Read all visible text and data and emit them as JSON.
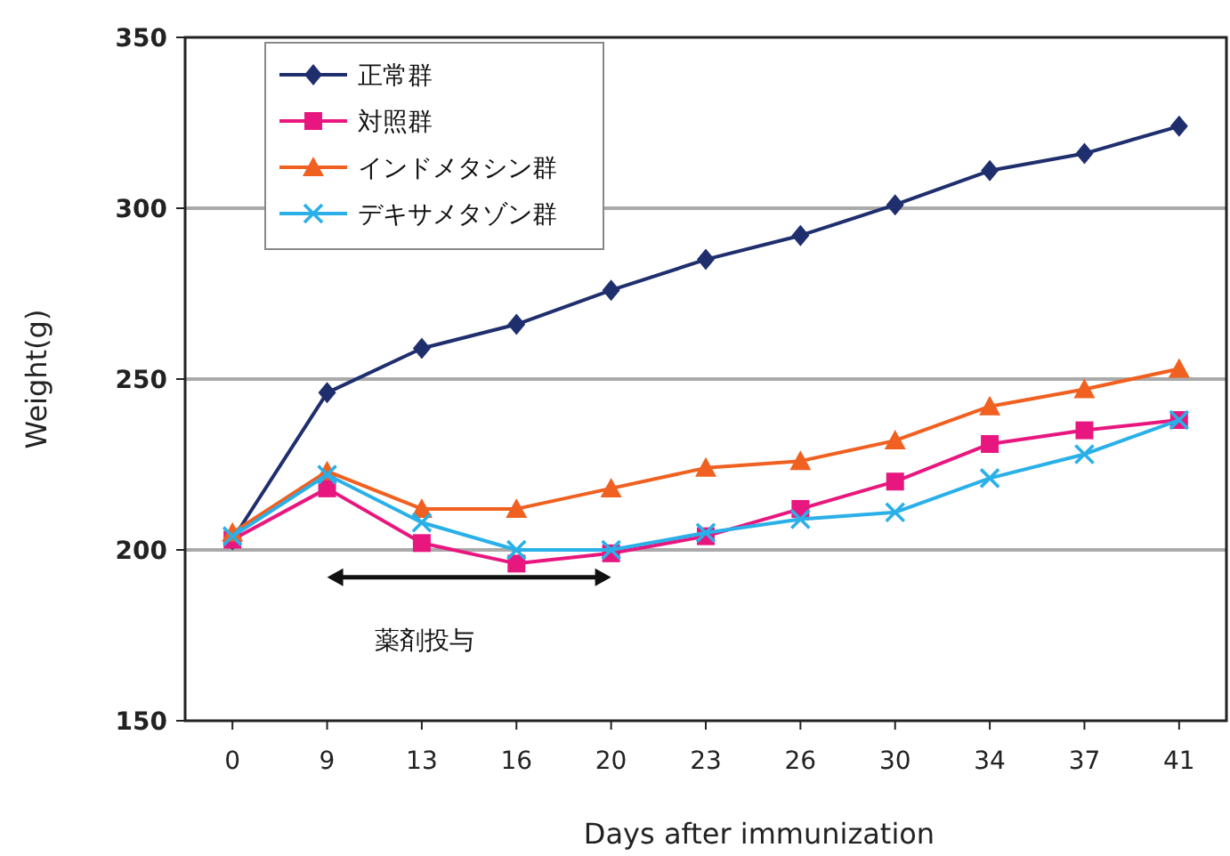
{
  "chart_data": {
    "type": "line",
    "xlabel": "Days after immunization",
    "ylabel": "Weight(g)",
    "categories": [
      "0",
      "9",
      "13",
      "16",
      "20",
      "23",
      "26",
      "30",
      "34",
      "37",
      "41"
    ],
    "series": [
      {
        "name": "正常群",
        "color": "#1f2f6e",
        "marker": "diamond",
        "values": [
          203,
          246,
          259,
          266,
          276,
          285,
          292,
          301,
          311,
          316,
          324
        ]
      },
      {
        "name": "対照群",
        "color": "#e8177f",
        "marker": "square",
        "values": [
          203,
          218,
          202,
          196,
          199,
          204,
          212,
          220,
          231,
          235,
          238
        ]
      },
      {
        "name": "インドメタシン群",
        "color": "#f06020",
        "marker": "triangle",
        "values": [
          205,
          223,
          212,
          212,
          218,
          224,
          226,
          232,
          242,
          247,
          253
        ]
      },
      {
        "name": "デキサメタゾン群",
        "color": "#2ab0e8",
        "marker": "cross",
        "values": [
          204,
          222,
          208,
          200,
          200,
          205,
          209,
          211,
          221,
          228,
          238
        ]
      }
    ],
    "ylim": [
      150,
      350
    ],
    "yticks": [
      150,
      200,
      250,
      300,
      350
    ],
    "grid": "y",
    "legend": "top left",
    "annotations": [
      "薬剤投与"
    ]
  }
}
